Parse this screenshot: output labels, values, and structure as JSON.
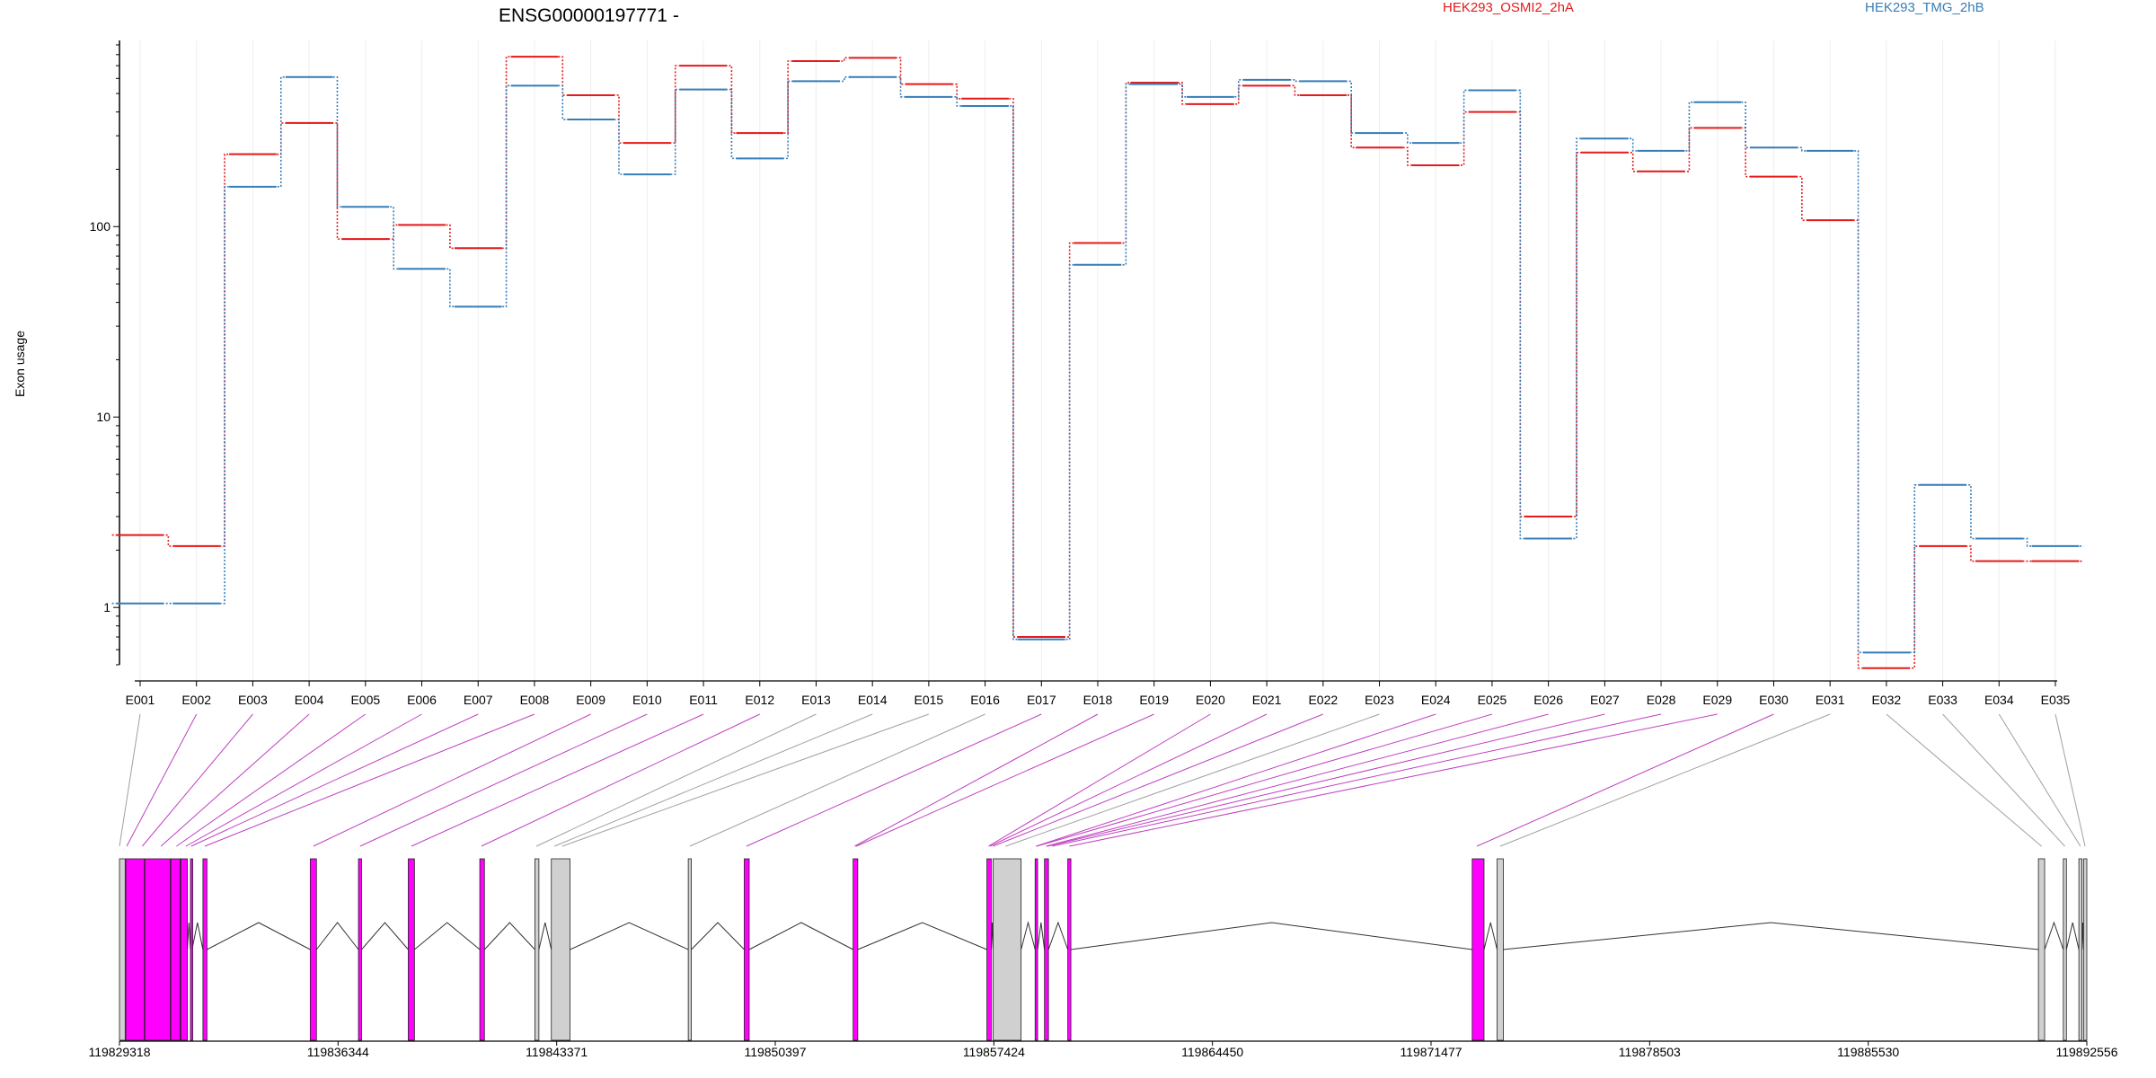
{
  "chart_data": {
    "type": "line",
    "title": "ENSG00000197771 -",
    "ylabel": "Exon usage",
    "xlabel": "",
    "y_scale": "log10",
    "ylim": [
      0.5,
      950
    ],
    "y_ticks": [
      "1",
      "10",
      "100"
    ],
    "grid": "vertical",
    "legend_position": "top-right",
    "categories": [
      "E001",
      "E002",
      "E003",
      "E004",
      "E005",
      "E006",
      "E007",
      "E008",
      "E009",
      "E010",
      "E011",
      "E012",
      "E013",
      "E014",
      "E015",
      "E016",
      "E017",
      "E018",
      "E019",
      "E020",
      "E021",
      "E022",
      "E023",
      "E024",
      "E025",
      "E026",
      "E027",
      "E028",
      "E029",
      "E030",
      "E031",
      "E032",
      "E033",
      "E034",
      "E035"
    ],
    "series": [
      {
        "name": "HEK293_OSMI2_2hA",
        "color": "#e41a1c",
        "values": [
          2.4,
          2.1,
          240,
          350,
          86,
          102,
          77,
          780,
          490,
          275,
          700,
          310,
          740,
          770,
          560,
          470,
          0.7,
          82,
          570,
          440,
          550,
          490,
          260,
          210,
          400,
          3.0,
          245,
          195,
          330,
          183,
          108,
          0.48,
          2.1,
          1.75,
          1.75
        ]
      },
      {
        "name": "HEK293_TMG_2hB",
        "color": "#377eb8",
        "values": [
          1.05,
          1.05,
          162,
          610,
          127,
          60,
          38,
          550,
          365,
          188,
          525,
          228,
          580,
          610,
          480,
          430,
          0.68,
          63,
          560,
          480,
          590,
          580,
          310,
          275,
          520,
          2.3,
          290,
          250,
          450,
          260,
          250,
          0.58,
          4.4,
          2.3,
          2.1
        ]
      }
    ],
    "genomic_ticks": [
      "119829318",
      "119836344",
      "119843371",
      "119850397",
      "119857424",
      "119864450",
      "119871477",
      "119878503",
      "119885530",
      "119892556"
    ]
  },
  "gene_model": {
    "highlight_color": "#ff00ff",
    "plain_color": "#d0d0d0",
    "exons": [
      {
        "start": 119829318,
        "end": 119829500,
        "sig": false
      },
      {
        "start": 119829520,
        "end": 119830120,
        "sig": true
      },
      {
        "start": 119830140,
        "end": 119830950,
        "sig": true
      },
      {
        "start": 119830970,
        "end": 119831270,
        "sig": true
      },
      {
        "start": 119831290,
        "end": 119831500,
        "sig": true
      },
      {
        "start": 119831600,
        "end": 119831650,
        "sig": true
      },
      {
        "start": 119832000,
        "end": 119832130,
        "sig": true
      },
      {
        "start": 119835450,
        "end": 119835650,
        "sig": true
      },
      {
        "start": 119837000,
        "end": 119837100,
        "sig": true
      },
      {
        "start": 119838600,
        "end": 119838800,
        "sig": true
      },
      {
        "start": 119840900,
        "end": 119841050,
        "sig": true
      },
      {
        "start": 119842670,
        "end": 119842800,
        "sig": false
      },
      {
        "start": 119843200,
        "end": 119843800,
        "sig": false
      },
      {
        "start": 119847600,
        "end": 119847700,
        "sig": false
      },
      {
        "start": 119849400,
        "end": 119849560,
        "sig": true
      },
      {
        "start": 119852900,
        "end": 119853050,
        "sig": true
      },
      {
        "start": 119857200,
        "end": 119857340,
        "sig": true
      },
      {
        "start": 119857400,
        "end": 119858300,
        "sig": false
      },
      {
        "start": 119858750,
        "end": 119858830,
        "sig": true
      },
      {
        "start": 119859050,
        "end": 119859180,
        "sig": true
      },
      {
        "start": 119859800,
        "end": 119859900,
        "sig": true
      },
      {
        "start": 119872800,
        "end": 119873180,
        "sig": true
      },
      {
        "start": 119873600,
        "end": 119873800,
        "sig": false
      },
      {
        "start": 119891000,
        "end": 119891200,
        "sig": false
      },
      {
        "start": 119891800,
        "end": 119891900,
        "sig": false
      },
      {
        "start": 119892300,
        "end": 119892400,
        "sig": false
      },
      {
        "start": 119892450,
        "end": 119892556,
        "sig": false
      }
    ],
    "connectors": [
      {
        "exon": "E001",
        "pos": 119829318,
        "sig": false
      },
      {
        "exon": "E002",
        "pos": 119829550,
        "sig": true
      },
      {
        "exon": "E003",
        "pos": 119830050,
        "sig": true
      },
      {
        "exon": "E004",
        "pos": 119830650,
        "sig": true
      },
      {
        "exon": "E005",
        "pos": 119831150,
        "sig": true
      },
      {
        "exon": "E006",
        "pos": 119831450,
        "sig": true
      },
      {
        "exon": "E007",
        "pos": 119831620,
        "sig": true
      },
      {
        "exon": "E008",
        "pos": 119832060,
        "sig": true
      },
      {
        "exon": "E009",
        "pos": 119835550,
        "sig": true
      },
      {
        "exon": "E010",
        "pos": 119837050,
        "sig": true
      },
      {
        "exon": "E011",
        "pos": 119838700,
        "sig": true
      },
      {
        "exon": "E012",
        "pos": 119840950,
        "sig": true
      },
      {
        "exon": "E013",
        "pos": 119842720,
        "sig": false
      },
      {
        "exon": "E014",
        "pos": 119843300,
        "sig": false
      },
      {
        "exon": "E015",
        "pos": 119843550,
        "sig": false
      },
      {
        "exon": "E016",
        "pos": 119847650,
        "sig": false
      },
      {
        "exon": "E017",
        "pos": 119849470,
        "sig": true
      },
      {
        "exon": "E018",
        "pos": 119852950,
        "sig": true
      },
      {
        "exon": "E019",
        "pos": 119853000,
        "sig": true
      },
      {
        "exon": "E020",
        "pos": 119857250,
        "sig": true
      },
      {
        "exon": "E021",
        "pos": 119857300,
        "sig": true
      },
      {
        "exon": "E022",
        "pos": 119857400,
        "sig": true
      },
      {
        "exon": "E023",
        "pos": 119857800,
        "sig": false
      },
      {
        "exon": "E024",
        "pos": 119858780,
        "sig": true
      },
      {
        "exon": "E025",
        "pos": 119858800,
        "sig": true
      },
      {
        "exon": "E026",
        "pos": 119859100,
        "sig": true
      },
      {
        "exon": "E027",
        "pos": 119859150,
        "sig": true
      },
      {
        "exon": "E028",
        "pos": 119859300,
        "sig": true
      },
      {
        "exon": "E029",
        "pos": 119859850,
        "sig": true
      },
      {
        "exon": "E030",
        "pos": 119872950,
        "sig": true
      },
      {
        "exon": "E031",
        "pos": 119873700,
        "sig": false
      },
      {
        "exon": "E032",
        "pos": 119891100,
        "sig": false
      },
      {
        "exon": "E033",
        "pos": 119891850,
        "sig": false
      },
      {
        "exon": "E034",
        "pos": 119892350,
        "sig": false
      },
      {
        "exon": "E035",
        "pos": 119892500,
        "sig": false
      }
    ]
  }
}
